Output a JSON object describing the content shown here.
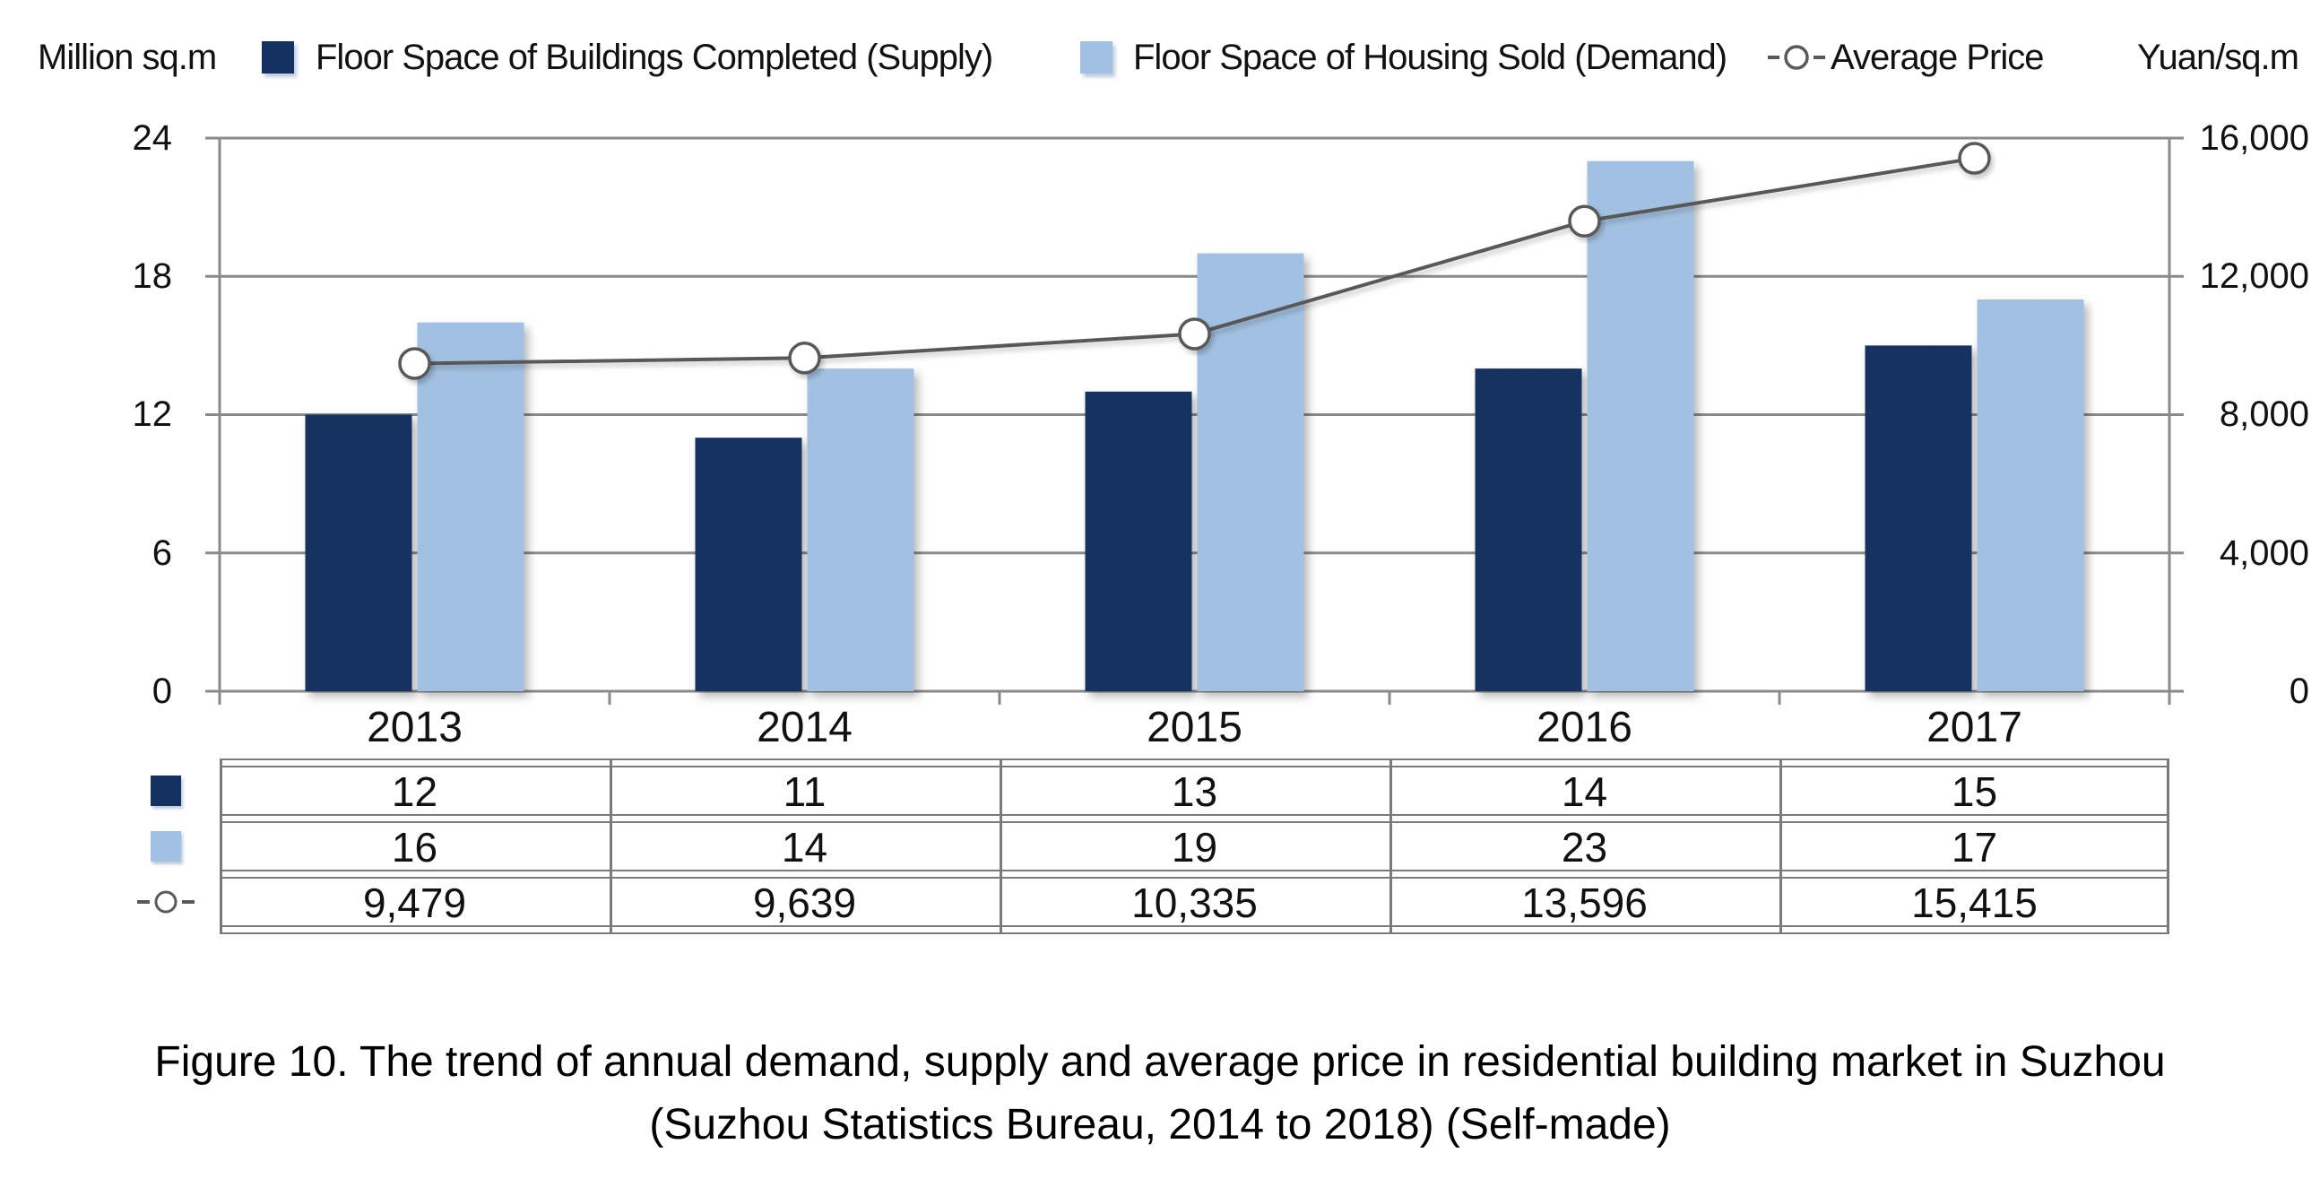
{
  "chart_data": {
    "type": "combo",
    "subtypes": [
      "bar",
      "bar",
      "line"
    ],
    "categories": [
      "2013",
      "2014",
      "2015",
      "2016",
      "2017"
    ],
    "series": [
      {
        "name": "Floor Space of Buildings Completed (Supply)",
        "type": "bar",
        "axis": "left",
        "color": "#143060",
        "values": [
          12,
          11,
          13,
          14,
          15
        ]
      },
      {
        "name": "Floor Space of Housing Sold (Demand)",
        "type": "bar",
        "axis": "left",
        "color": "#A2C0E1",
        "values": [
          16,
          14,
          19,
          23,
          17
        ]
      },
      {
        "name": "Average Price",
        "type": "line",
        "axis": "right",
        "color": "#595959",
        "marker": "white-circle",
        "values": [
          9479,
          9639,
          10335,
          13596,
          15415
        ],
        "values_display": [
          "9,479",
          "9,639",
          "10,335",
          "13,596",
          "15,415"
        ]
      }
    ],
    "left_axis": {
      "title": "Million sq.m",
      "range": [
        0,
        24
      ],
      "ticks": [
        0,
        6,
        12,
        18,
        24
      ],
      "ticks_display": [
        "0",
        "6",
        "12",
        "18",
        "24"
      ]
    },
    "right_axis": {
      "title": "Yuan/sq.m",
      "range": [
        0,
        16000
      ],
      "ticks": [
        0,
        4000,
        8000,
        12000,
        16000
      ],
      "ticks_display": [
        "0",
        "4,000",
        "8,000",
        "12,000",
        "16,000"
      ]
    },
    "grid": true,
    "legend_position": "top",
    "grid_color": "#8a8a8a",
    "table_border_color": "#7a7a7a"
  },
  "caption": {
    "line1": "Figure 10. The trend of annual demand, supply and average price in residential building market in Suzhou",
    "line2": "(Suzhou Statistics Bureau, 2014 to 2018) (Self-made)"
  }
}
